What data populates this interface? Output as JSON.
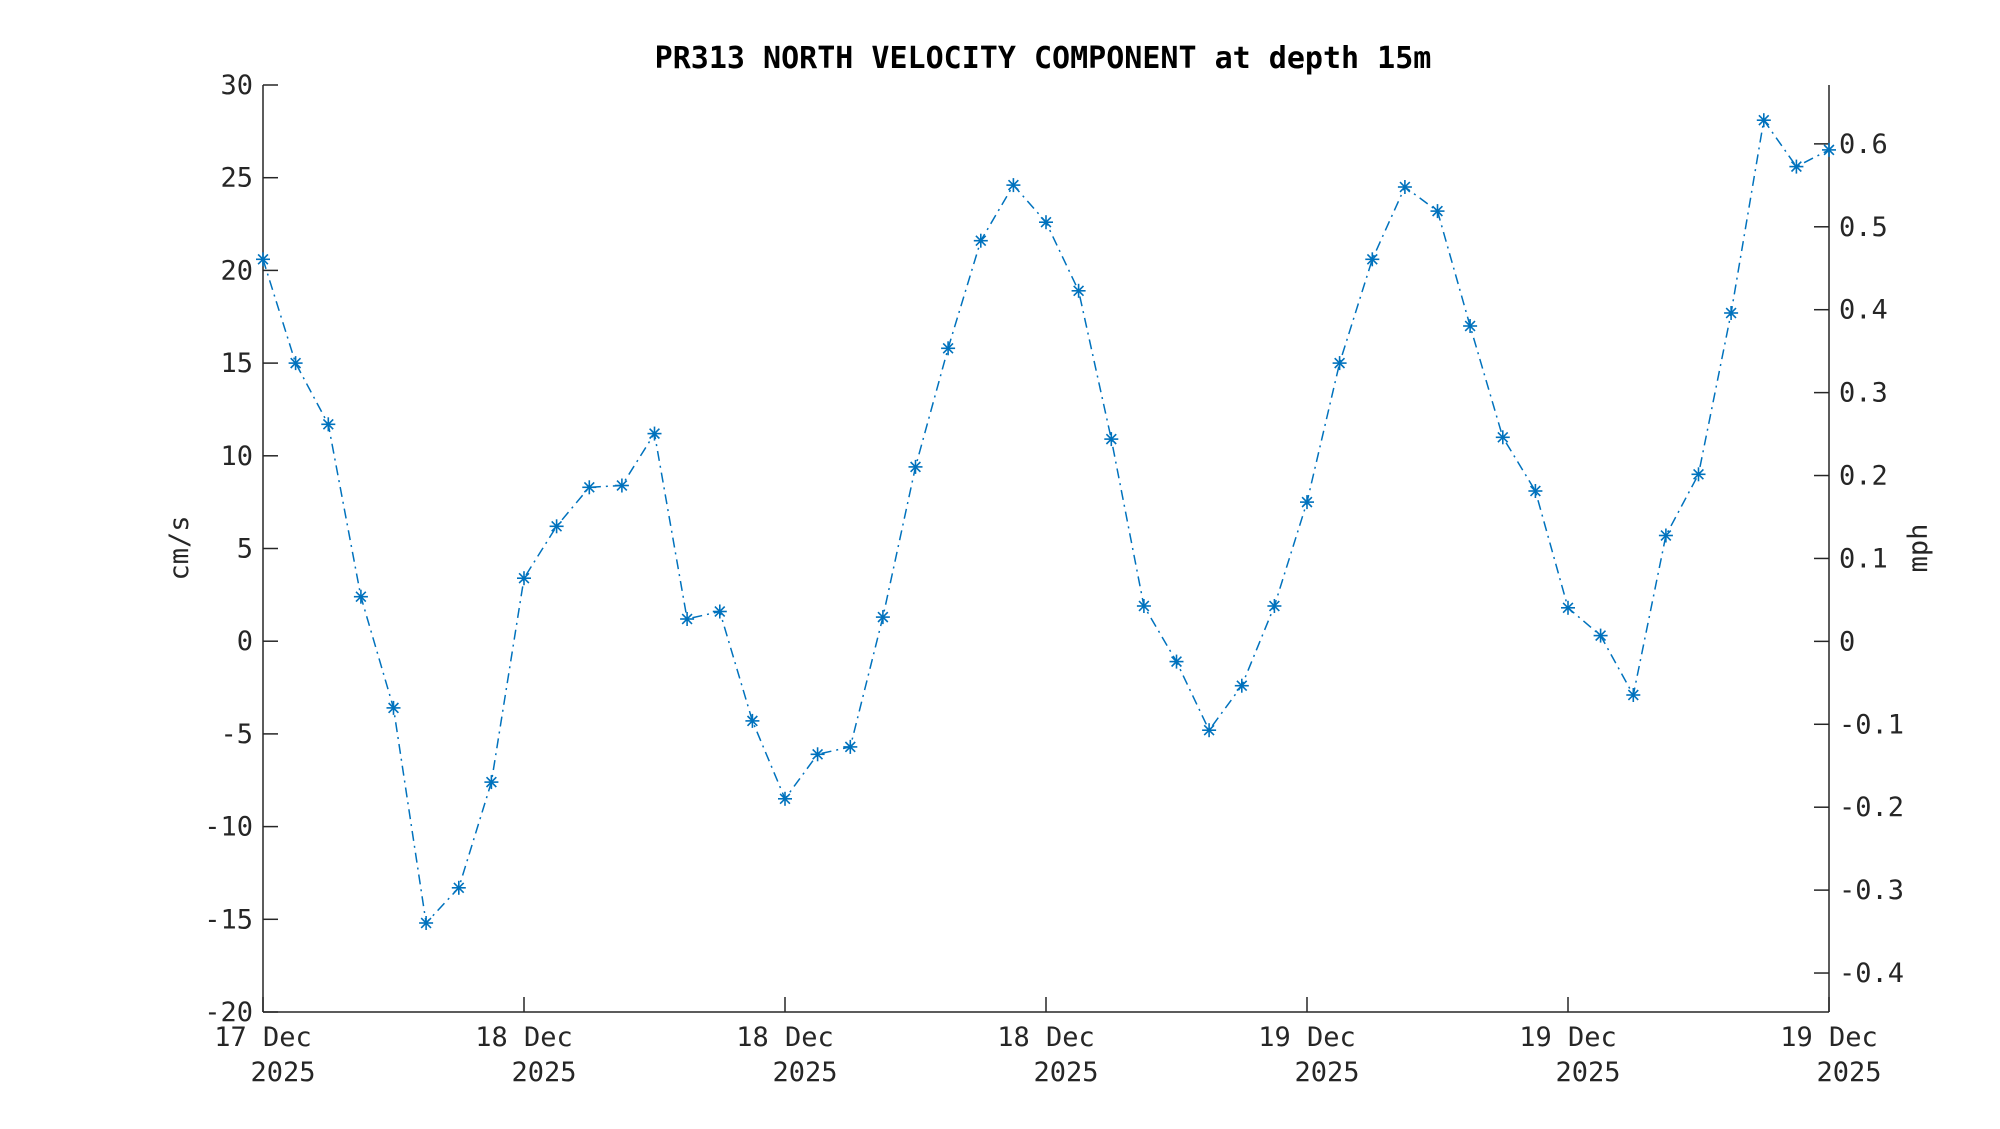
{
  "chart_data": {
    "type": "line",
    "title": "PR313 NORTH VELOCITY COMPONENT at depth 15m",
    "ylabel": "cm/s",
    "y2label": "mph",
    "ylim": [
      -20,
      30
    ],
    "y2lim": [
      -0.447,
      0.671
    ],
    "yticks": [
      "30",
      "25",
      "20",
      "15",
      "10",
      "5",
      "0",
      "-5",
      "-10",
      "-15",
      "-20"
    ],
    "yticks_values": [
      30,
      25,
      20,
      15,
      10,
      5,
      0,
      -5,
      -10,
      -15,
      -20
    ],
    "y2ticks": [
      "0.6",
      "0.5",
      "0.4",
      "0.3",
      "0.2",
      "0.1",
      "0",
      "-0.1",
      "-0.2",
      "-0.3",
      "-0.4"
    ],
    "y2ticks_values": [
      0.6,
      0.5,
      0.4,
      0.3,
      0.2,
      0.1,
      0,
      -0.1,
      -0.2,
      -0.3,
      -0.4
    ],
    "xticks": [
      {
        "line1": "17 Dec",
        "line2": "2025"
      },
      {
        "line1": "18 Dec",
        "line2": "2025"
      },
      {
        "line1": "18 Dec",
        "line2": "2025"
      },
      {
        "line1": "18 Dec",
        "line2": "2025"
      },
      {
        "line1": "19 Dec",
        "line2": "2025"
      },
      {
        "line1": "19 Dec",
        "line2": "2025"
      },
      {
        "line1": "19 Dec",
        "line2": "2025"
      }
    ],
    "xticks_hours": [
      0,
      8,
      16,
      24,
      32,
      40,
      48
    ],
    "grid": false,
    "line_style": "dash-dot",
    "marker": "asterisk",
    "series_color": "#0072BD",
    "series": [
      {
        "hours": [
          0,
          1,
          2,
          3,
          4,
          5,
          6,
          7,
          8,
          9,
          10,
          11,
          12,
          13,
          14,
          15,
          16,
          17,
          18,
          19,
          20,
          21,
          22,
          23,
          24,
          25,
          26,
          27,
          28,
          29,
          30,
          31,
          32,
          33,
          34,
          35,
          36,
          37,
          38,
          39,
          40,
          41,
          42,
          43,
          44,
          45,
          46,
          47,
          48
        ],
        "values": [
          20.6,
          15.0,
          11.7,
          2.4,
          -3.6,
          -15.2,
          -13.3,
          -7.6,
          3.4,
          6.2,
          8.3,
          8.4,
          11.2,
          1.2,
          1.6,
          -4.3,
          -8.5,
          -6.1,
          -5.7,
          1.3,
          9.4,
          15.8,
          21.6,
          24.6,
          22.6,
          18.9,
          10.9,
          1.9,
          -1.1,
          -4.8,
          -2.4,
          1.9,
          7.5,
          15.0,
          20.6,
          24.5,
          23.2,
          17.0,
          11.0,
          8.1,
          1.8,
          0.3,
          -2.9,
          5.7,
          9.0,
          17.7,
          28.1,
          25.6,
          26.5
        ]
      }
    ]
  }
}
